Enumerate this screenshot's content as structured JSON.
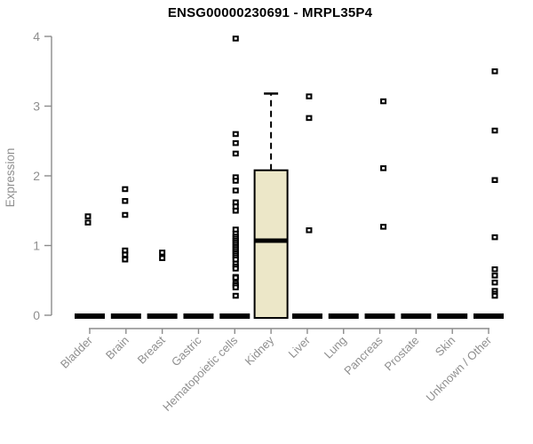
{
  "page": {
    "background": "#ffffff"
  },
  "chart_data": {
    "type": "boxplot",
    "title": "ENSG00000230691 - MRPL35P4",
    "ylabel": "Expression",
    "xlabel": "",
    "ylim": [
      0,
      4
    ],
    "yticks": [
      0,
      1,
      2,
      3,
      4
    ],
    "grid": false,
    "legend": false,
    "categories": [
      "Bladder",
      "Brain",
      "Breast",
      "Gastric",
      "Hematopoietic cells",
      "Kidney",
      "Liver",
      "Lung",
      "Pancreas",
      "Prostate",
      "Skin",
      "Unknown / Other"
    ],
    "boxes": [
      {
        "category": "Bladder",
        "q1": 0,
        "median": 0,
        "q3": 0,
        "whisker_low": 0,
        "whisker_high": 0,
        "outliers": [
          1.42,
          1.33
        ],
        "outlier_dx": -2
      },
      {
        "category": "Brain",
        "q1": 0,
        "median": 0,
        "q3": 0,
        "whisker_low": 0,
        "whisker_high": 0,
        "outliers": [
          1.81,
          1.64,
          1.44,
          0.93,
          0.87,
          0.8
        ],
        "outlier_dx": -1
      },
      {
        "category": "Breast",
        "q1": 0,
        "median": 0,
        "q3": 0,
        "whisker_low": 0,
        "whisker_high": 0,
        "outliers": [
          0.9,
          0.82
        ],
        "outlier_dx": 0
      },
      {
        "category": "Gastric",
        "q1": 0,
        "median": 0,
        "q3": 0,
        "whisker_low": 0,
        "whisker_high": 0,
        "outliers": [],
        "outlier_dx": 0
      },
      {
        "category": "Hematopoietic cells",
        "q1": 0,
        "median": 0,
        "q3": 0,
        "whisker_low": 0,
        "whisker_high": 0,
        "outliers": [
          3.97,
          2.6,
          2.47,
          2.32,
          1.98,
          1.93,
          1.79,
          1.62,
          1.56,
          1.5,
          1.23,
          1.17,
          1.13,
          1.1,
          1.07,
          1.04,
          1.01,
          0.98,
          0.95,
          0.92,
          0.89,
          0.86,
          0.83,
          0.8,
          0.74,
          0.7,
          0.67,
          0.55,
          0.54,
          0.46,
          0.43,
          0.4,
          0.28
        ],
        "outlier_dx": 1
      },
      {
        "category": "Kidney",
        "q1": 0,
        "median": 1.07,
        "q3": 2.08,
        "whisker_low": 0,
        "whisker_high": 3.18,
        "outliers": [],
        "outlier_dx": 0
      },
      {
        "category": "Liver",
        "q1": 0,
        "median": 0,
        "q3": 0,
        "whisker_low": 0,
        "whisker_high": 0,
        "outliers": [
          3.14,
          2.83,
          1.22
        ],
        "outlier_dx": 2
      },
      {
        "category": "Lung",
        "q1": 0,
        "median": 0,
        "q3": 0,
        "whisker_low": 0,
        "whisker_high": 0,
        "outliers": [],
        "outlier_dx": 0
      },
      {
        "category": "Pancreas",
        "q1": 0,
        "median": 0,
        "q3": 0,
        "whisker_low": 0,
        "whisker_high": 0,
        "outliers": [
          3.07,
          2.11,
          1.27
        ],
        "outlier_dx": 4
      },
      {
        "category": "Prostate",
        "q1": 0,
        "median": 0,
        "q3": 0,
        "whisker_low": 0,
        "whisker_high": 0,
        "outliers": [],
        "outlier_dx": 0
      },
      {
        "category": "Skin",
        "q1": 0,
        "median": 0,
        "q3": 0,
        "whisker_low": 0,
        "whisker_high": 0,
        "outliers": [],
        "outlier_dx": 0
      },
      {
        "category": "Unknown / Other",
        "q1": 0,
        "median": 0,
        "q3": 0,
        "whisker_low": 0,
        "whisker_high": 0,
        "outliers": [
          3.5,
          2.65,
          1.94,
          1.12,
          0.66,
          0.57,
          0.47,
          0.35,
          0.31,
          0.28
        ],
        "outlier_dx": 7
      }
    ],
    "colors": {
      "box_fill": "#ece7c8",
      "box_border": "#000000",
      "median": "#000000",
      "outlier": "#000000",
      "zero_bar": "#000000",
      "axis_line": "#8c8c8c",
      "tick_label": "#8f8f8f",
      "axis_title": "#8f8f8f",
      "title": "#000000",
      "background": "#ffffff"
    }
  }
}
